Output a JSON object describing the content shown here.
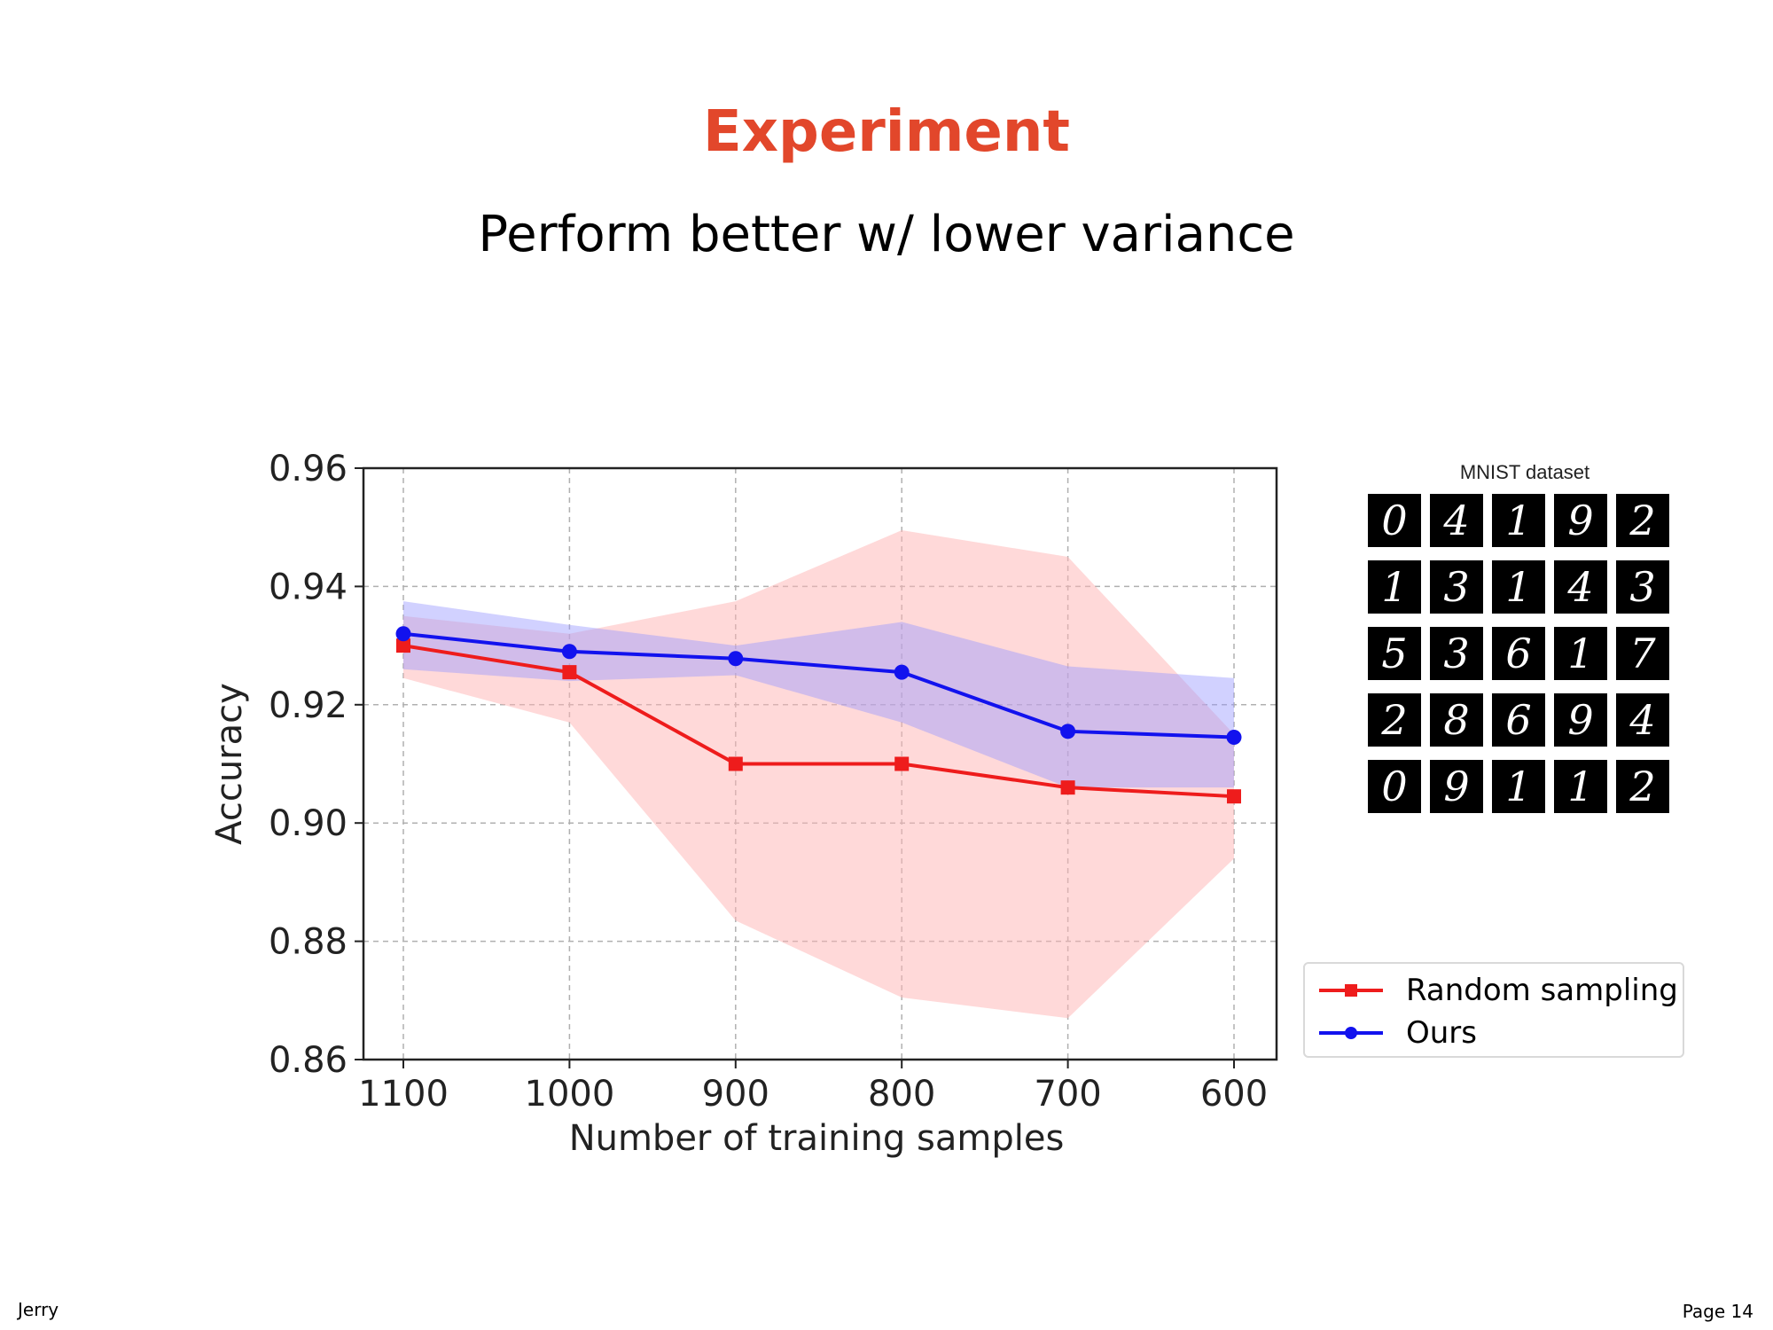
{
  "slide": {
    "title": "Experiment",
    "subtitle": "Perform better w/ lower variance",
    "footer_left": "Jerry",
    "footer_right": "Page 14"
  },
  "mnist": {
    "title": "MNIST dataset",
    "digits": [
      "0",
      "4",
      "1",
      "9",
      "2",
      "1",
      "3",
      "1",
      "4",
      "3",
      "5",
      "3",
      "6",
      "1",
      "7",
      "2",
      "8",
      "6",
      "9",
      "4",
      "0",
      "9",
      "1",
      "1",
      "2"
    ]
  },
  "chart_data": {
    "type": "line",
    "title": "",
    "xlabel": "Number of training samples",
    "ylabel": "Accuracy",
    "categories": [
      "1100",
      "1000",
      "900",
      "800",
      "700",
      "600"
    ],
    "xlim": [
      1100,
      600
    ],
    "ylim": [
      0.86,
      0.96
    ],
    "yticks": [
      "0.86",
      "0.88",
      "0.90",
      "0.92",
      "0.94",
      "0.96"
    ],
    "grid": true,
    "legend_position": "bottom-right-outside",
    "series": [
      {
        "name": "Random sampling",
        "marker": "square",
        "color": "#ee1c1c",
        "band_color": "#ffb3b3",
        "values": [
          0.93,
          0.9255,
          0.91,
          0.91,
          0.906,
          0.9045
        ],
        "lower": [
          0.9245,
          0.917,
          0.8835,
          0.8705,
          0.867,
          0.894
        ],
        "upper": [
          0.935,
          0.932,
          0.9375,
          0.9495,
          0.945,
          0.915
        ]
      },
      {
        "name": "Ours",
        "marker": "circle",
        "color": "#1212ee",
        "band_color": "#9a9aff",
        "values": [
          0.932,
          0.929,
          0.9278,
          0.9255,
          0.9155,
          0.9145
        ],
        "lower": [
          0.926,
          0.924,
          0.925,
          0.917,
          0.906,
          0.906
        ],
        "upper": [
          0.9375,
          0.9335,
          0.93,
          0.934,
          0.9265,
          0.9245
        ]
      }
    ]
  }
}
